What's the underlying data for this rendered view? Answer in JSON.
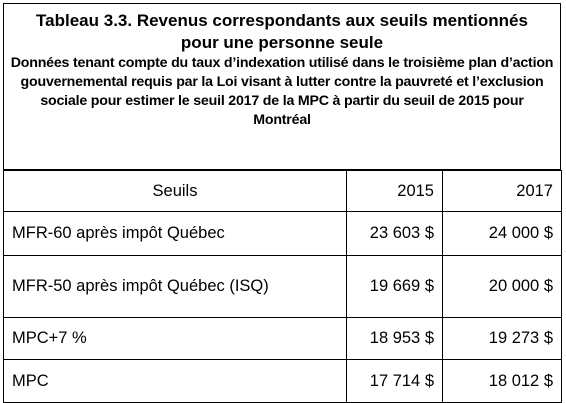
{
  "title": "Tableau 3.3. Revenus correspondants aux seuils mentionnés pour une personne seule",
  "subtitle": "Données tenant compte du taux d’indexation utilisé dans le troisième plan d’action gouvernemental requis par la Loi visant à lutter contre la pauvreté et l’exclusion sociale pour estimer le seuil 2017 de la MPC à partir du seuil de 2015 pour Montréal",
  "table": {
    "header": [
      "Seuils",
      "2015",
      "2017"
    ],
    "rows": [
      [
        "MFR-60 après impôt Québec",
        "23 603 $",
        "24 000 $"
      ],
      [
        "MFR-50 après impôt Québec (ISQ)",
        "19 669 $",
        "20 000 $"
      ],
      [
        "MPC+7 %",
        "18 953 $",
        "19 273 $"
      ],
      [
        "MPC",
        "17 714 $",
        "18 012 $"
      ]
    ]
  }
}
